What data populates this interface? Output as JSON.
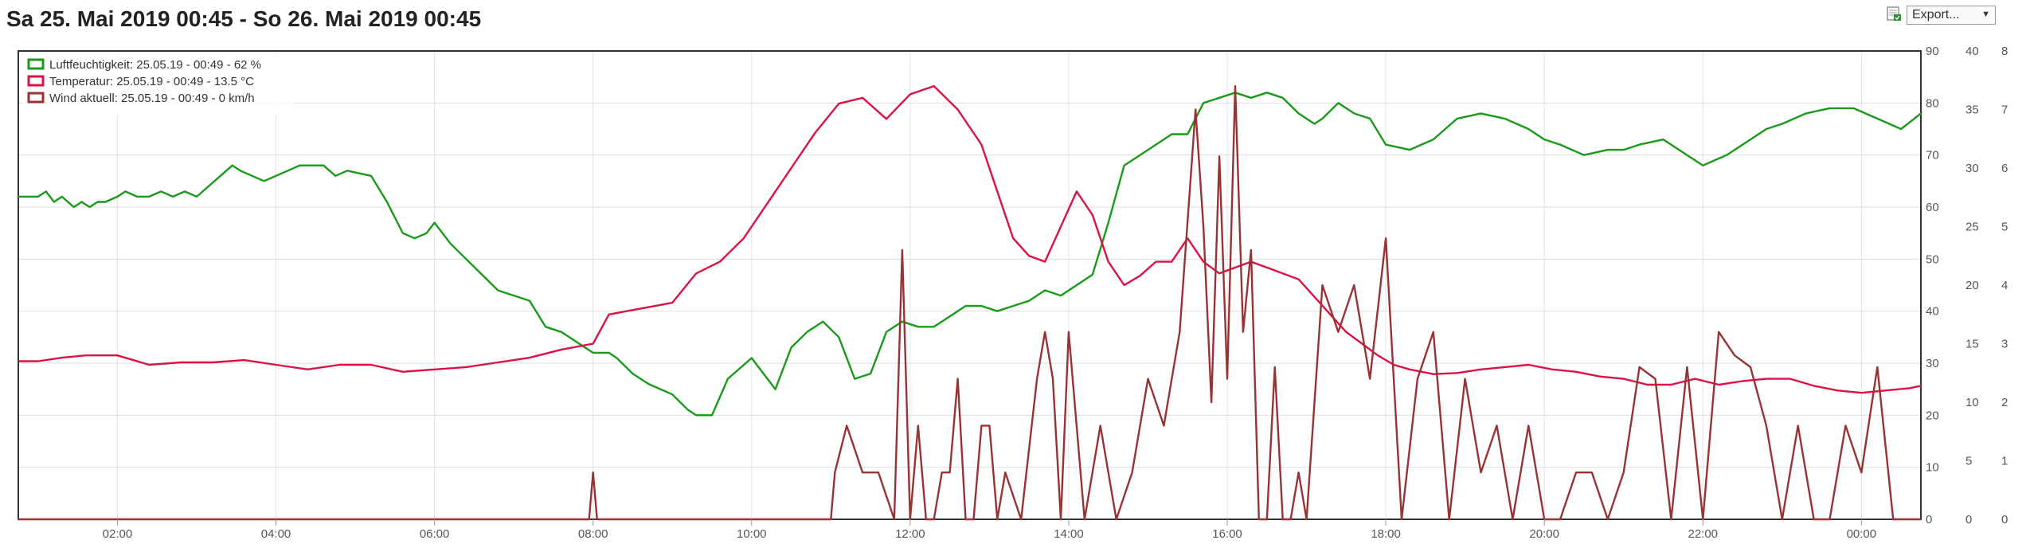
{
  "title": "Sa 25. Mai 2019 00:45 - So 26. Mai 2019 00:45",
  "export": {
    "label": "Export...",
    "icon": "export-spreadsheet-icon"
  },
  "chart_data": {
    "type": "line",
    "x_ticks": [
      "02:00",
      "04:00",
      "06:00",
      "08:00",
      "10:00",
      "12:00",
      "14:00",
      "16:00",
      "18:00",
      "20:00",
      "22:00",
      "00:00"
    ],
    "x_range_hours": [
      0.75,
      24.75
    ],
    "y_axes": [
      {
        "id": "hum",
        "ticks": [
          "0",
          "10",
          "20",
          "30",
          "40",
          "50",
          "60",
          "70",
          "80",
          "90"
        ],
        "range": [
          0,
          90
        ]
      },
      {
        "id": "temp",
        "ticks": [
          "0",
          "5",
          "10",
          "15",
          "20",
          "25",
          "30",
          "35",
          "40"
        ],
        "range": [
          0,
          40
        ]
      },
      {
        "id": "wind",
        "ticks": [
          "0",
          "1",
          "2",
          "3",
          "4",
          "5",
          "6",
          "7",
          "8"
        ],
        "range": [
          0,
          8
        ]
      }
    ],
    "grid": true,
    "legend_placement": "top-left",
    "series": [
      {
        "name": "Luftfeuchtigkeit: 25.05.19 - 00:49 - 62 %",
        "color": "#1a9a1a",
        "axis": "hum",
        "x": [
          0.75,
          1,
          1.1,
          1.2,
          1.3,
          1.45,
          1.55,
          1.65,
          1.75,
          1.85,
          2,
          2.1,
          2.25,
          2.4,
          2.55,
          2.7,
          2.85,
          3,
          3.15,
          3.3,
          3.45,
          3.55,
          3.7,
          3.85,
          4,
          4.15,
          4.3,
          4.4,
          4.6,
          4.75,
          4.9,
          5.2,
          5.4,
          5.6,
          5.75,
          5.9,
          6,
          6.2,
          6.4,
          6.6,
          6.8,
          7,
          7.2,
          7.4,
          7.6,
          7.8,
          8.0,
          8.2,
          8.3,
          8.5,
          8.7,
          9.0,
          9.2,
          9.3,
          9.5,
          9.7,
          10.0,
          10.3,
          10.5,
          10.7,
          10.9,
          11.1,
          11.3,
          11.5,
          11.7,
          11.9,
          12.1,
          12.3,
          12.5,
          12.7,
          12.9,
          13.1,
          13.3,
          13.5,
          13.7,
          13.9,
          14.1,
          14.3,
          14.5,
          14.7,
          14.9,
          15.1,
          15.3,
          15.5,
          15.7,
          15.9,
          16.1,
          16.3,
          16.5,
          16.7,
          16.9,
          17.1,
          17.2,
          17.4,
          17.6,
          17.8,
          18.0,
          18.3,
          18.6,
          18.9,
          19.2,
          19.5,
          19.8,
          20.0,
          20.2,
          20.5,
          20.8,
          21.0,
          21.2,
          21.5,
          21.8,
          22.0,
          22.3,
          22.6,
          22.8,
          23.0,
          23.3,
          23.6,
          23.9,
          24.2,
          24.5,
          24.75
        ],
        "y": [
          62,
          62,
          63,
          61,
          62,
          60,
          61,
          60,
          61,
          61,
          62,
          63,
          62,
          62,
          63,
          62,
          63,
          62,
          64,
          66,
          68,
          67,
          66,
          65,
          66,
          67,
          68,
          68,
          68,
          66,
          67,
          66,
          61,
          55,
          54,
          55,
          57,
          53,
          50,
          47,
          44,
          43,
          42,
          37,
          36,
          34,
          32,
          32,
          31,
          28,
          26,
          24,
          21,
          20,
          20,
          27,
          31,
          25,
          33,
          36,
          38,
          35,
          27,
          28,
          36,
          38,
          37,
          37,
          39,
          41,
          41,
          40,
          41,
          42,
          44,
          43,
          45,
          47,
          57,
          68,
          70,
          72,
          74,
          74,
          80,
          81,
          82,
          81,
          82,
          81,
          78,
          76,
          77,
          80,
          78,
          77,
          72,
          71,
          73,
          77,
          78,
          77,
          75,
          73,
          72,
          70,
          71,
          71,
          72,
          73,
          70,
          68,
          70,
          73,
          75,
          76,
          78,
          79,
          79,
          77,
          75,
          78
        ]
      },
      {
        "name": "Temperatur: 25.05.19 - 00:49 - 13.5 °C",
        "color": "#dd1144",
        "axis": "temp",
        "x": [
          0.75,
          1,
          1.3,
          1.6,
          2.0,
          2.4,
          2.8,
          3.2,
          3.6,
          4.0,
          4.4,
          4.8,
          5.2,
          5.6,
          6.0,
          6.4,
          6.8,
          7.2,
          7.6,
          8.0,
          8.2,
          8.6,
          9.0,
          9.3,
          9.6,
          9.9,
          10.2,
          10.5,
          10.8,
          11.1,
          11.4,
          11.7,
          12.0,
          12.3,
          12.6,
          12.9,
          13.1,
          13.3,
          13.5,
          13.7,
          13.9,
          14.1,
          14.3,
          14.5,
          14.7,
          14.9,
          15.1,
          15.3,
          15.5,
          15.7,
          15.9,
          16.1,
          16.3,
          16.5,
          16.7,
          16.9,
          17.1,
          17.3,
          17.5,
          17.7,
          17.9,
          18.1,
          18.3,
          18.6,
          18.9,
          19.2,
          19.5,
          19.8,
          20.1,
          20.4,
          20.7,
          21.0,
          21.3,
          21.6,
          21.9,
          22.2,
          22.5,
          22.8,
          23.1,
          23.4,
          23.7,
          24.0,
          24.3,
          24.6,
          24.75
        ],
        "y": [
          13.5,
          13.5,
          13.8,
          14,
          14,
          13.2,
          13.4,
          13.4,
          13.6,
          13.2,
          12.8,
          13.2,
          13.2,
          12.6,
          12.8,
          13,
          13.4,
          13.8,
          14.5,
          15,
          17.5,
          18,
          18.5,
          21,
          22,
          24,
          27,
          30,
          33,
          35.5,
          36,
          34.2,
          36.3,
          37,
          35,
          32,
          28,
          24,
          22.5,
          22,
          25,
          28,
          26,
          22,
          20,
          20.8,
          22,
          22,
          24,
          22,
          21,
          21.5,
          22,
          21.5,
          21,
          20.5,
          19,
          17.5,
          16,
          15,
          14,
          13.2,
          12.8,
          12.4,
          12.5,
          12.8,
          13,
          13.2,
          12.8,
          12.6,
          12.2,
          12,
          11.5,
          11.5,
          12,
          11.5,
          11.8,
          12,
          12,
          11.4,
          11,
          10.8,
          11,
          11.2,
          11.4
        ]
      },
      {
        "name": "Wind aktuell: 25.05.19 - 00:49 - 0 km/h",
        "color": "#993333",
        "axis": "wind",
        "x": [
          0.75,
          7.95,
          8.0,
          8.05,
          11.0,
          11.05,
          11.2,
          11.4,
          11.6,
          11.8,
          11.9,
          12.0,
          12.1,
          12.2,
          12.3,
          12.4,
          12.5,
          12.6,
          12.7,
          12.8,
          12.9,
          13.0,
          13.1,
          13.2,
          13.4,
          13.6,
          13.7,
          13.8,
          13.9,
          14.0,
          14.2,
          14.4,
          14.6,
          14.8,
          15.0,
          15.2,
          15.4,
          15.6,
          15.7,
          15.8,
          15.9,
          16.0,
          16.1,
          16.2,
          16.3,
          16.4,
          16.5,
          16.6,
          16.7,
          16.8,
          16.9,
          17.0,
          17.2,
          17.4,
          17.6,
          17.8,
          18.0,
          18.2,
          18.4,
          18.6,
          18.8,
          19.0,
          19.2,
          19.4,
          19.6,
          19.8,
          20.0,
          20.2,
          20.4,
          20.6,
          20.8,
          21.0,
          21.2,
          21.4,
          21.6,
          21.8,
          22.0,
          22.2,
          22.4,
          22.6,
          22.8,
          23.0,
          23.2,
          23.4,
          23.6,
          23.8,
          24.0,
          24.2,
          24.4,
          24.6,
          24.75
        ],
        "y": [
          0,
          0,
          0.8,
          0,
          0,
          0.8,
          1.6,
          0.8,
          0.8,
          0,
          4.6,
          0,
          1.6,
          0,
          0,
          0.8,
          0.8,
          2.4,
          0,
          0,
          1.6,
          1.6,
          0,
          0.8,
          0,
          2.4,
          3.2,
          2.4,
          0,
          3.2,
          0,
          1.6,
          0,
          0.8,
          2.4,
          1.6,
          3.2,
          7,
          5,
          2,
          6.2,
          2.4,
          7.4,
          3.2,
          4.6,
          0,
          0,
          2.6,
          0,
          0,
          0.8,
          0,
          4,
          3.2,
          4,
          2.4,
          4.8,
          0,
          2.4,
          3.2,
          0,
          2.4,
          0.8,
          1.6,
          0,
          1.6,
          0,
          0,
          0.8,
          0.8,
          0,
          0.8,
          2.6,
          2.4,
          0,
          2.6,
          0,
          3.2,
          2.8,
          2.6,
          1.6,
          0,
          1.6,
          0,
          0,
          1.6,
          0.8,
          2.6,
          0,
          0,
          0
        ]
      }
    ]
  }
}
